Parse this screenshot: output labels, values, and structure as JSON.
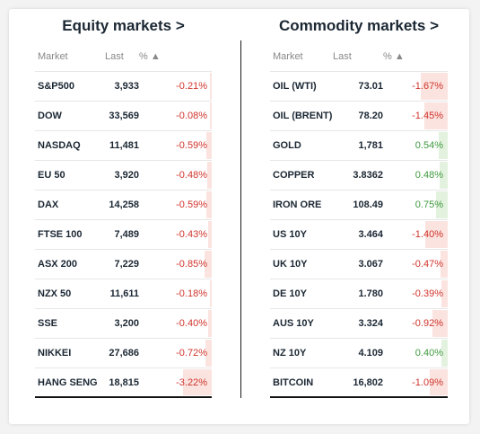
{
  "colors": {
    "negative": "#d0342c",
    "positive": "#3f9a3f",
    "negative_bg": "#fbe3df",
    "positive_bg": "#e3f1df"
  },
  "equity": {
    "title": "Equity markets >",
    "headers": {
      "market": "Market",
      "last": "Last",
      "pct": "% ▲"
    },
    "rows": [
      {
        "market": "S&P500",
        "last": "3,933",
        "pct": "-0.21%",
        "change": -0.21
      },
      {
        "market": "DOW",
        "last": "33,569",
        "pct": "-0.08%",
        "change": -0.08
      },
      {
        "market": "NASDAQ",
        "last": "11,481",
        "pct": "-0.59%",
        "change": -0.59
      },
      {
        "market": "EU 50",
        "last": "3,920",
        "pct": "-0.48%",
        "change": -0.48
      },
      {
        "market": "DAX",
        "last": "14,258",
        "pct": "-0.59%",
        "change": -0.59
      },
      {
        "market": "FTSE 100",
        "last": "7,489",
        "pct": "-0.43%",
        "change": -0.43
      },
      {
        "market": "ASX 200",
        "last": "7,229",
        "pct": "-0.85%",
        "change": -0.85
      },
      {
        "market": "NZX 50",
        "last": "11,611",
        "pct": "-0.18%",
        "change": -0.18
      },
      {
        "market": "SSE",
        "last": "3,200",
        "pct": "-0.40%",
        "change": -0.4
      },
      {
        "market": "NIKKEI",
        "last": "27,686",
        "pct": "-0.72%",
        "change": -0.72
      },
      {
        "market": "HANG SENG",
        "last": "18,815",
        "pct": "-3.22%",
        "change": -3.22
      }
    ]
  },
  "commodity": {
    "title": "Commodity markets >",
    "headers": {
      "market": "Market",
      "last": "Last",
      "pct": "% ▲"
    },
    "rows": [
      {
        "market": "OIL (WTI)",
        "last": "73.01",
        "pct": "-1.67%",
        "change": -1.67
      },
      {
        "market": "OIL (BRENT)",
        "last": "78.20",
        "pct": "-1.45%",
        "change": -1.45
      },
      {
        "market": "GOLD",
        "last": "1,781",
        "pct": "0.54%",
        "change": 0.54
      },
      {
        "market": "COPPER",
        "last": "3.8362",
        "pct": "0.48%",
        "change": 0.48
      },
      {
        "market": "IRON ORE",
        "last": "108.49",
        "pct": "0.75%",
        "change": 0.75
      },
      {
        "market": "US 10Y",
        "last": "3.464",
        "pct": "-1.40%",
        "change": -1.4
      },
      {
        "market": "UK 10Y",
        "last": "3.067",
        "pct": "-0.47%",
        "change": -0.47
      },
      {
        "market": "DE 10Y",
        "last": "1.780",
        "pct": "-0.39%",
        "change": -0.39
      },
      {
        "market": "AUS 10Y",
        "last": "3.324",
        "pct": "-0.92%",
        "change": -0.92
      },
      {
        "market": "NZ 10Y",
        "last": "4.109",
        "pct": "0.40%",
        "change": 0.4
      },
      {
        "market": "BITCOIN",
        "last": "16,802",
        "pct": "-1.09%",
        "change": -1.09
      }
    ]
  }
}
